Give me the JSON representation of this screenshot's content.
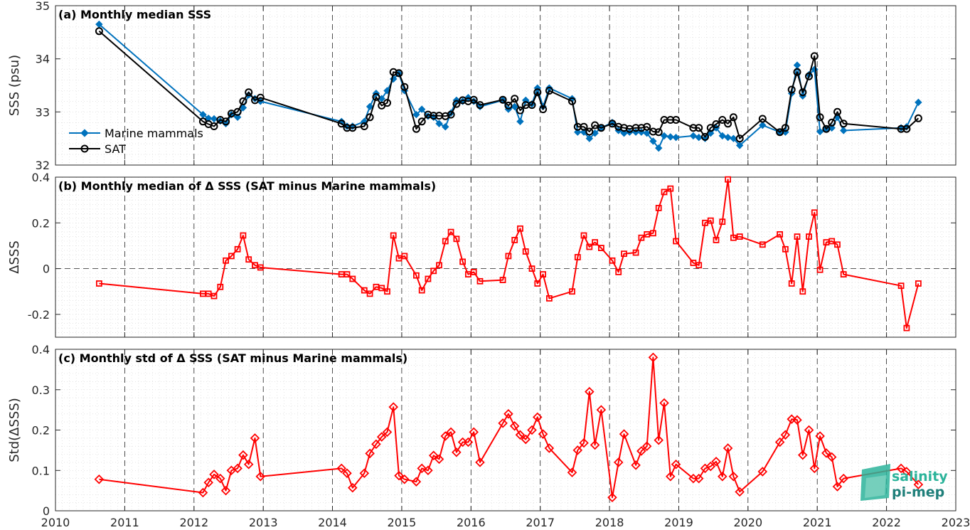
{
  "chart_data": [
    {
      "type": "line",
      "title": "(a) Monthly median SSS",
      "ylabel": "SSS (psu)",
      "xlim": [
        2010,
        2023
      ],
      "ylim": [
        32,
        35
      ],
      "yticks": [
        32,
        33,
        34,
        35
      ],
      "grid": true,
      "legend_location": "left",
      "series": [
        {
          "name": "Marine mammals",
          "color": "#0072bd",
          "marker": "diamond",
          "x": [
            2010.63,
            2012.13,
            2012.21,
            2012.29,
            2012.38,
            2012.46,
            2012.54,
            2012.63,
            2012.71,
            2012.79,
            2012.88,
            2012.96,
            2014.13,
            2014.21,
            2014.29,
            2014.46,
            2014.54,
            2014.63,
            2014.71,
            2014.79,
            2014.88,
            2014.96,
            2015.04,
            2015.21,
            2015.29,
            2015.38,
            2015.46,
            2015.54,
            2015.63,
            2015.71,
            2015.79,
            2015.88,
            2015.96,
            2016.04,
            2016.13,
            2016.46,
            2016.54,
            2016.63,
            2016.71,
            2016.79,
            2016.88,
            2016.96,
            2017.04,
            2017.13,
            2017.46,
            2017.54,
            2017.63,
            2017.71,
            2017.79,
            2017.88,
            2018.04,
            2018.13,
            2018.21,
            2018.29,
            2018.38,
            2018.46,
            2018.54,
            2018.63,
            2018.71,
            2018.79,
            2018.88,
            2018.96,
            2019.21,
            2019.29,
            2019.38,
            2019.46,
            2019.54,
            2019.63,
            2019.71,
            2019.79,
            2019.88,
            2020.21,
            2020.46,
            2020.54,
            2020.63,
            2020.71,
            2020.79,
            2020.88,
            2020.96,
            2021.04,
            2021.13,
            2021.21,
            2021.29,
            2021.38,
            2022.21,
            2022.29,
            2022.46
          ],
          "y": [
            34.65,
            32.95,
            32.88,
            32.87,
            32.83,
            32.78,
            32.95,
            32.9,
            33.08,
            33.32,
            33.25,
            33.2,
            32.82,
            32.73,
            32.73,
            32.82,
            33.1,
            33.35,
            33.25,
            33.4,
            33.62,
            33.72,
            33.4,
            32.95,
            33.05,
            32.92,
            32.9,
            32.78,
            32.72,
            32.98,
            33.22,
            33.2,
            33.27,
            33.2,
            33.1,
            33.22,
            33.05,
            33.1,
            32.82,
            33.22,
            33.15,
            33.45,
            33.1,
            33.45,
            33.25,
            32.62,
            32.62,
            32.5,
            32.6,
            32.7,
            32.8,
            32.65,
            32.6,
            32.62,
            32.62,
            32.62,
            32.6,
            32.45,
            32.32,
            32.55,
            32.53,
            32.52,
            32.55,
            32.52,
            32.5,
            32.6,
            32.7,
            32.55,
            32.52,
            32.5,
            32.37,
            32.75,
            32.62,
            32.62,
            33.35,
            33.88,
            33.3,
            33.7,
            33.8,
            32.63,
            32.68,
            32.7,
            32.9,
            32.65,
            32.7,
            32.72,
            33.18
          ]
        },
        {
          "name": "SAT",
          "color": "#000000",
          "marker": "circle",
          "x": [
            2010.63,
            2012.13,
            2012.21,
            2012.29,
            2012.38,
            2012.46,
            2012.54,
            2012.63,
            2012.71,
            2012.79,
            2012.88,
            2012.96,
            2014.13,
            2014.21,
            2014.29,
            2014.46,
            2014.54,
            2014.63,
            2014.71,
            2014.79,
            2014.88,
            2014.96,
            2015.04,
            2015.21,
            2015.29,
            2015.38,
            2015.46,
            2015.54,
            2015.63,
            2015.71,
            2015.79,
            2015.88,
            2015.96,
            2016.04,
            2016.13,
            2016.46,
            2016.54,
            2016.63,
            2016.71,
            2016.79,
            2016.88,
            2016.96,
            2017.04,
            2017.13,
            2017.46,
            2017.54,
            2017.63,
            2017.71,
            2017.79,
            2017.88,
            2018.04,
            2018.13,
            2018.21,
            2018.29,
            2018.38,
            2018.46,
            2018.54,
            2018.63,
            2018.71,
            2018.79,
            2018.88,
            2018.96,
            2019.21,
            2019.29,
            2019.38,
            2019.46,
            2019.54,
            2019.63,
            2019.71,
            2019.79,
            2019.88,
            2020.21,
            2020.46,
            2020.54,
            2020.63,
            2020.71,
            2020.79,
            2020.88,
            2020.96,
            2021.04,
            2021.13,
            2021.21,
            2021.29,
            2021.38,
            2022.21,
            2022.29,
            2022.46
          ],
          "y": [
            34.52,
            32.82,
            32.77,
            32.73,
            32.85,
            32.82,
            32.97,
            33.0,
            33.2,
            33.37,
            33.22,
            33.27,
            32.78,
            32.7,
            32.7,
            32.73,
            32.9,
            33.28,
            33.12,
            33.17,
            33.75,
            33.73,
            33.47,
            32.68,
            32.82,
            32.95,
            32.93,
            32.93,
            32.92,
            32.95,
            33.15,
            33.22,
            33.2,
            33.23,
            33.13,
            33.23,
            33.12,
            33.25,
            33.03,
            33.13,
            33.13,
            33.37,
            33.05,
            33.4,
            33.2,
            32.72,
            32.72,
            32.63,
            32.75,
            32.7,
            32.78,
            32.72,
            32.7,
            32.68,
            32.7,
            32.7,
            32.72,
            32.63,
            32.62,
            32.85,
            32.85,
            32.85,
            32.7,
            32.7,
            32.53,
            32.7,
            32.77,
            32.85,
            32.78,
            32.9,
            32.5,
            32.87,
            32.62,
            32.7,
            33.42,
            33.75,
            33.37,
            33.67,
            34.05,
            32.9,
            32.68,
            32.8,
            33.0,
            32.78,
            32.68,
            32.68,
            32.88
          ]
        }
      ]
    },
    {
      "type": "line",
      "title": "(b) Monthly median of Δ SSS (SAT minus Marine mammals)",
      "ylabel": "ΔSSS",
      "xlim": [
        2010,
        2023
      ],
      "ylim": [
        -0.3,
        0.4
      ],
      "yticks": [
        -0.2,
        0,
        0.2,
        0.4
      ],
      "ytick_labels": [
        "-0.2",
        "0",
        "0.2",
        "0.4"
      ],
      "zero_line": true,
      "grid": true,
      "series": [
        {
          "color": "#ff0000",
          "marker": "square",
          "x": [
            2010.63,
            2012.13,
            2012.21,
            2012.29,
            2012.38,
            2012.46,
            2012.54,
            2012.63,
            2012.71,
            2012.79,
            2012.88,
            2012.96,
            2014.13,
            2014.21,
            2014.29,
            2014.46,
            2014.54,
            2014.63,
            2014.71,
            2014.79,
            2014.88,
            2014.96,
            2015.04,
            2015.21,
            2015.29,
            2015.38,
            2015.46,
            2015.54,
            2015.63,
            2015.71,
            2015.79,
            2015.88,
            2015.96,
            2016.04,
            2016.13,
            2016.46,
            2016.54,
            2016.63,
            2016.71,
            2016.79,
            2016.88,
            2016.96,
            2017.04,
            2017.13,
            2017.46,
            2017.54,
            2017.63,
            2017.71,
            2017.79,
            2017.88,
            2018.04,
            2018.13,
            2018.21,
            2018.38,
            2018.46,
            2018.54,
            2018.63,
            2018.71,
            2018.79,
            2018.88,
            2018.96,
            2019.21,
            2019.29,
            2019.38,
            2019.46,
            2019.54,
            2019.63,
            2019.71,
            2019.79,
            2019.88,
            2020.21,
            2020.46,
            2020.54,
            2020.63,
            2020.71,
            2020.79,
            2020.88,
            2020.96,
            2021.04,
            2021.13,
            2021.21,
            2021.29,
            2021.38,
            2022.21,
            2022.29,
            2022.46
          ],
          "y": [
            -0.065,
            -0.11,
            -0.11,
            -0.12,
            -0.08,
            0.035,
            0.055,
            0.085,
            0.145,
            0.04,
            0.015,
            0.005,
            -0.025,
            -0.025,
            -0.045,
            -0.095,
            -0.11,
            -0.08,
            -0.085,
            -0.1,
            0.145,
            0.045,
            0.055,
            -0.03,
            -0.095,
            -0.045,
            -0.01,
            0.015,
            0.12,
            0.16,
            0.13,
            0.03,
            -0.025,
            -0.015,
            -0.055,
            -0.05,
            0.055,
            0.125,
            0.175,
            0.075,
            0.0,
            -0.065,
            -0.025,
            -0.13,
            -0.1,
            0.05,
            0.145,
            0.095,
            0.115,
            0.09,
            0.035,
            -0.015,
            0.065,
            0.07,
            0.135,
            0.15,
            0.155,
            0.265,
            0.335,
            0.35,
            0.12,
            0.025,
            0.015,
            0.2,
            0.21,
            0.125,
            0.205,
            0.39,
            0.135,
            0.14,
            0.105,
            0.15,
            0.085,
            -0.065,
            0.14,
            -0.1,
            0.14,
            0.245,
            -0.005,
            0.115,
            0.12,
            0.105,
            -0.025,
            -0.075,
            -0.26,
            -0.065
          ]
        }
      ]
    },
    {
      "type": "line",
      "title": "(c) Monthly std of Δ SSS (SAT minus Marine mammals)",
      "ylabel": "Std(ΔSSS)",
      "xlabel": "",
      "xlim": [
        2010,
        2023
      ],
      "ylim": [
        0,
        0.4
      ],
      "yticks": [
        0,
        0.1,
        0.2,
        0.3,
        0.4
      ],
      "ytick_labels": [
        "0",
        "0.1",
        "0.2",
        "0.3",
        "0.4"
      ],
      "xticks": [
        "2010",
        "2011",
        "2012",
        "2013",
        "2014",
        "2015",
        "2016",
        "2017",
        "2018",
        "2019",
        "2020",
        "2021",
        "2022",
        "2023"
      ],
      "grid": true,
      "series": [
        {
          "color": "#ff0000",
          "marker": "diamond",
          "x": [
            2010.63,
            2012.13,
            2012.21,
            2012.29,
            2012.38,
            2012.46,
            2012.54,
            2012.63,
            2012.71,
            2012.79,
            2012.88,
            2012.96,
            2014.13,
            2014.21,
            2014.29,
            2014.46,
            2014.54,
            2014.63,
            2014.71,
            2014.79,
            2014.88,
            2014.96,
            2015.04,
            2015.21,
            2015.29,
            2015.38,
            2015.46,
            2015.54,
            2015.63,
            2015.71,
            2015.79,
            2015.88,
            2015.96,
            2016.04,
            2016.13,
            2016.46,
            2016.54,
            2016.63,
            2016.71,
            2016.79,
            2016.88,
            2016.96,
            2017.04,
            2017.13,
            2017.46,
            2017.54,
            2017.63,
            2017.71,
            2017.79,
            2017.88,
            2018.04,
            2018.13,
            2018.21,
            2018.38,
            2018.46,
            2018.54,
            2018.63,
            2018.71,
            2018.79,
            2018.88,
            2018.96,
            2019.21,
            2019.29,
            2019.38,
            2019.46,
            2019.54,
            2019.63,
            2019.71,
            2019.79,
            2019.88,
            2020.21,
            2020.46,
            2020.54,
            2020.63,
            2020.71,
            2020.79,
            2020.88,
            2020.96,
            2021.04,
            2021.13,
            2021.21,
            2021.29,
            2021.38,
            2022.21,
            2022.29,
            2022.46
          ],
          "y": [
            0.078,
            0.045,
            0.07,
            0.09,
            0.08,
            0.05,
            0.1,
            0.105,
            0.138,
            0.115,
            0.18,
            0.085,
            0.105,
            0.093,
            0.057,
            0.093,
            0.142,
            0.165,
            0.183,
            0.195,
            0.257,
            0.087,
            0.078,
            0.072,
            0.105,
            0.1,
            0.137,
            0.128,
            0.185,
            0.195,
            0.145,
            0.17,
            0.17,
            0.195,
            0.12,
            0.217,
            0.24,
            0.21,
            0.188,
            0.177,
            0.2,
            0.232,
            0.19,
            0.155,
            0.095,
            0.15,
            0.168,
            0.295,
            0.163,
            0.25,
            0.033,
            0.12,
            0.19,
            0.113,
            0.148,
            0.16,
            0.38,
            0.175,
            0.267,
            0.085,
            0.115,
            0.08,
            0.08,
            0.105,
            0.11,
            0.122,
            0.085,
            0.155,
            0.085,
            0.047,
            0.097,
            0.17,
            0.188,
            0.227,
            0.225,
            0.138,
            0.2,
            0.105,
            0.185,
            0.143,
            0.133,
            0.06,
            0.08,
            0.105,
            0.097,
            0.065
          ]
        }
      ]
    }
  ],
  "logo": {
    "line1": "salinity",
    "line2": "pi-mep"
  }
}
